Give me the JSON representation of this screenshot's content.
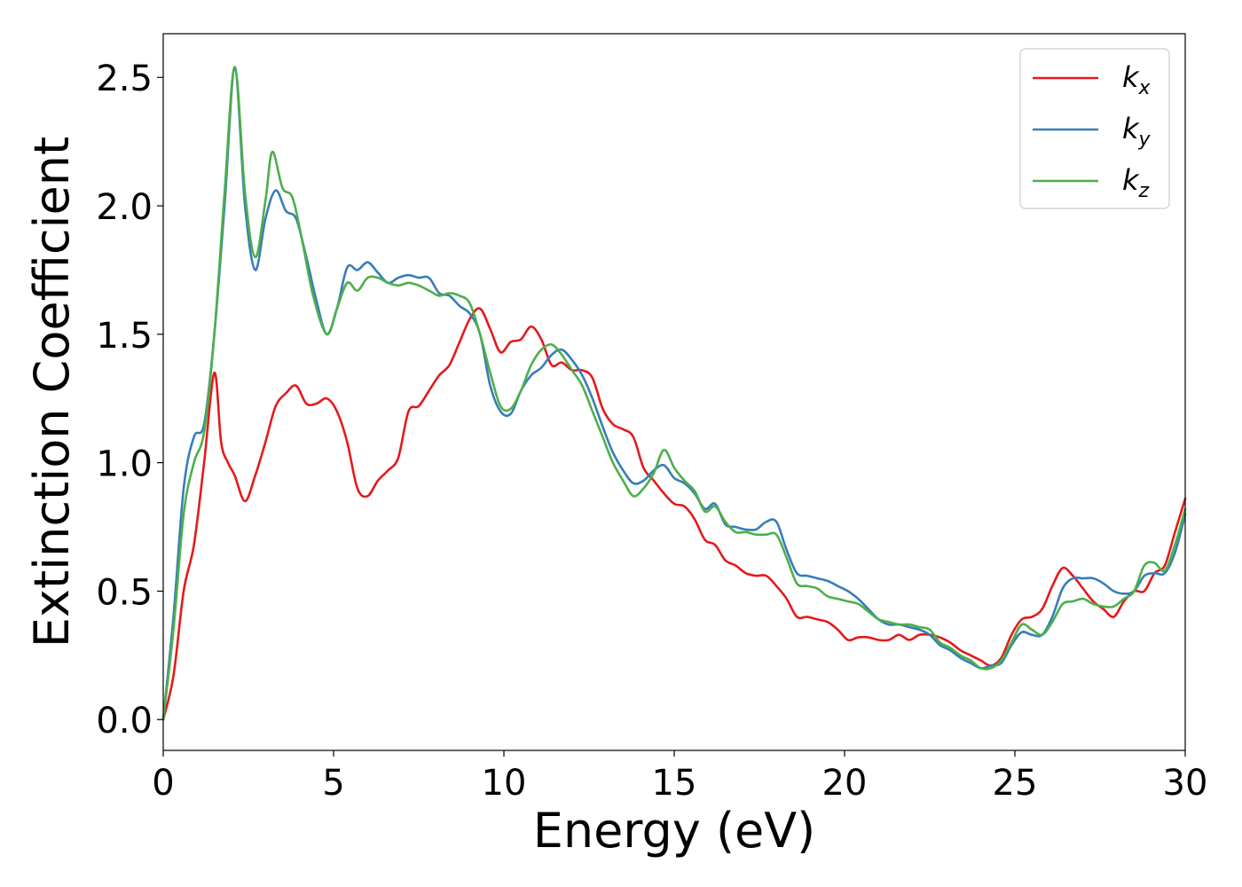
{
  "chart_data": {
    "type": "line",
    "xlabel": "Energy (eV)",
    "ylabel": "Extinction Coefficient",
    "xlim": [
      0,
      30
    ],
    "ylim": [
      -0.12,
      2.67
    ],
    "xticks": [
      0,
      5,
      10,
      15,
      20,
      25,
      30
    ],
    "xtick_labels": [
      "0",
      "5",
      "10",
      "15",
      "20",
      "25",
      "30"
    ],
    "yticks": [
      0.0,
      0.5,
      1.0,
      1.5,
      2.0,
      2.5
    ],
    "ytick_labels": [
      "0.0",
      "0.5",
      "1.0",
      "1.5",
      "2.0",
      "2.5"
    ],
    "grid": false,
    "legend_position": "top-right",
    "series": [
      {
        "name": "k_x",
        "label_main": "k",
        "label_sub": "x",
        "color": "#e41a1c",
        "x": [
          0,
          0.3,
          0.6,
          0.9,
          1.2,
          1.5,
          1.7,
          1.9,
          2.1,
          2.4,
          2.7,
          3.0,
          3.3,
          3.6,
          3.9,
          4.2,
          4.5,
          4.8,
          5.1,
          5.4,
          5.7,
          6.0,
          6.3,
          6.6,
          6.9,
          7.2,
          7.5,
          7.8,
          8.1,
          8.4,
          8.7,
          9.0,
          9.3,
          9.6,
          9.9,
          10.2,
          10.5,
          10.8,
          11.1,
          11.4,
          11.7,
          12.0,
          12.3,
          12.6,
          12.9,
          13.2,
          13.5,
          13.8,
          14.1,
          14.4,
          14.7,
          15.0,
          15.3,
          15.6,
          15.9,
          16.2,
          16.5,
          16.8,
          17.1,
          17.4,
          17.7,
          18.0,
          18.3,
          18.6,
          18.9,
          19.2,
          19.5,
          19.8,
          20.1,
          20.4,
          20.7,
          21.0,
          21.3,
          21.6,
          21.9,
          22.2,
          22.5,
          22.8,
          23.1,
          23.4,
          23.7,
          24.0,
          24.3,
          24.6,
          24.9,
          25.2,
          25.5,
          25.8,
          26.1,
          26.4,
          26.7,
          27.0,
          27.3,
          27.6,
          27.9,
          28.2,
          28.5,
          28.8,
          29.1,
          29.4,
          29.7,
          30.0
        ],
        "values": [
          0.0,
          0.17,
          0.5,
          0.68,
          1.0,
          1.35,
          1.08,
          1.0,
          0.95,
          0.85,
          0.95,
          1.08,
          1.22,
          1.27,
          1.3,
          1.23,
          1.23,
          1.25,
          1.2,
          1.08,
          0.9,
          0.87,
          0.93,
          0.97,
          1.02,
          1.2,
          1.22,
          1.28,
          1.34,
          1.38,
          1.47,
          1.56,
          1.6,
          1.52,
          1.43,
          1.47,
          1.48,
          1.53,
          1.48,
          1.38,
          1.39,
          1.36,
          1.36,
          1.33,
          1.21,
          1.15,
          1.13,
          1.1,
          0.98,
          0.93,
          0.88,
          0.84,
          0.83,
          0.78,
          0.7,
          0.68,
          0.62,
          0.6,
          0.57,
          0.56,
          0.56,
          0.52,
          0.47,
          0.4,
          0.4,
          0.39,
          0.38,
          0.35,
          0.31,
          0.32,
          0.32,
          0.31,
          0.31,
          0.33,
          0.31,
          0.33,
          0.33,
          0.32,
          0.3,
          0.27,
          0.25,
          0.23,
          0.21,
          0.24,
          0.33,
          0.39,
          0.4,
          0.43,
          0.52,
          0.59,
          0.56,
          0.51,
          0.46,
          0.43,
          0.4,
          0.46,
          0.5,
          0.5,
          0.57,
          0.6,
          0.73,
          0.86
        ]
      },
      {
        "name": "k_y",
        "label_main": "k",
        "label_sub": "y",
        "color": "#377eb8",
        "x": [
          0,
          0.3,
          0.6,
          0.9,
          1.2,
          1.5,
          1.8,
          2.1,
          2.4,
          2.7,
          3.0,
          3.3,
          3.6,
          3.9,
          4.2,
          4.5,
          4.8,
          5.1,
          5.4,
          5.7,
          6.0,
          6.3,
          6.6,
          6.9,
          7.2,
          7.5,
          7.8,
          8.1,
          8.4,
          8.7,
          9.0,
          9.3,
          9.6,
          9.9,
          10.2,
          10.5,
          10.8,
          11.1,
          11.4,
          11.7,
          12.0,
          12.3,
          12.6,
          12.9,
          13.2,
          13.5,
          13.8,
          14.1,
          14.4,
          14.7,
          15.0,
          15.3,
          15.6,
          15.9,
          16.2,
          16.5,
          16.8,
          17.1,
          17.4,
          17.7,
          18.0,
          18.3,
          18.6,
          18.9,
          19.2,
          19.5,
          19.8,
          20.1,
          20.4,
          20.7,
          21.0,
          21.3,
          21.6,
          21.9,
          22.2,
          22.5,
          22.8,
          23.1,
          23.4,
          23.7,
          24.0,
          24.3,
          24.6,
          24.9,
          25.2,
          25.5,
          25.8,
          26.1,
          26.4,
          26.7,
          27.0,
          27.3,
          27.6,
          27.9,
          28.2,
          28.5,
          28.8,
          29.1,
          29.4,
          29.7,
          30.0
        ],
        "values": [
          0.0,
          0.4,
          0.9,
          1.1,
          1.15,
          1.5,
          2.0,
          2.53,
          2.0,
          1.75,
          1.95,
          2.06,
          1.98,
          1.95,
          1.8,
          1.63,
          1.5,
          1.6,
          1.76,
          1.75,
          1.78,
          1.74,
          1.7,
          1.72,
          1.73,
          1.72,
          1.72,
          1.66,
          1.65,
          1.61,
          1.58,
          1.5,
          1.3,
          1.2,
          1.19,
          1.28,
          1.34,
          1.37,
          1.42,
          1.44,
          1.4,
          1.34,
          1.25,
          1.14,
          1.04,
          0.97,
          0.92,
          0.93,
          0.97,
          0.99,
          0.94,
          0.92,
          0.88,
          0.82,
          0.84,
          0.76,
          0.75,
          0.74,
          0.74,
          0.77,
          0.77,
          0.66,
          0.57,
          0.56,
          0.55,
          0.54,
          0.52,
          0.5,
          0.47,
          0.43,
          0.39,
          0.37,
          0.37,
          0.36,
          0.35,
          0.33,
          0.29,
          0.27,
          0.24,
          0.22,
          0.2,
          0.21,
          0.22,
          0.29,
          0.34,
          0.33,
          0.33,
          0.4,
          0.51,
          0.55,
          0.55,
          0.55,
          0.53,
          0.5,
          0.49,
          0.5,
          0.56,
          0.57,
          0.57,
          0.65,
          0.8
        ]
      },
      {
        "name": "k_z",
        "label_main": "k",
        "label_sub": "z",
        "color": "#4daf4a",
        "x": [
          0,
          0.3,
          0.6,
          0.9,
          1.2,
          1.5,
          1.8,
          2.1,
          2.4,
          2.7,
          3.0,
          3.2,
          3.5,
          3.8,
          4.1,
          4.4,
          4.8,
          5.1,
          5.4,
          5.7,
          6.0,
          6.3,
          6.6,
          6.9,
          7.2,
          7.5,
          7.8,
          8.1,
          8.4,
          8.7,
          9.0,
          9.3,
          9.6,
          9.9,
          10.2,
          10.5,
          10.8,
          11.1,
          11.4,
          11.7,
          12.0,
          12.3,
          12.6,
          12.9,
          13.2,
          13.5,
          13.8,
          14.1,
          14.4,
          14.7,
          15.0,
          15.3,
          15.6,
          15.9,
          16.2,
          16.5,
          16.8,
          17.1,
          17.4,
          17.7,
          18.0,
          18.3,
          18.6,
          18.9,
          19.2,
          19.5,
          19.8,
          20.1,
          20.4,
          20.7,
          21.0,
          21.3,
          21.6,
          21.9,
          22.2,
          22.5,
          22.8,
          23.1,
          23.4,
          23.7,
          24.0,
          24.3,
          24.6,
          24.9,
          25.2,
          25.5,
          25.8,
          26.1,
          26.4,
          26.7,
          27.0,
          27.3,
          27.6,
          27.9,
          28.2,
          28.5,
          28.8,
          29.1,
          29.4,
          29.7,
          30.0
        ],
        "values": [
          0.0,
          0.35,
          0.8,
          1.0,
          1.12,
          1.5,
          2.05,
          2.54,
          2.05,
          1.8,
          2.02,
          2.21,
          2.07,
          2.03,
          1.85,
          1.65,
          1.5,
          1.6,
          1.7,
          1.67,
          1.72,
          1.72,
          1.7,
          1.69,
          1.7,
          1.69,
          1.67,
          1.65,
          1.66,
          1.65,
          1.62,
          1.5,
          1.35,
          1.22,
          1.21,
          1.28,
          1.38,
          1.44,
          1.46,
          1.42,
          1.36,
          1.3,
          1.2,
          1.1,
          1.0,
          0.93,
          0.87,
          0.9,
          0.96,
          1.05,
          0.98,
          0.93,
          0.89,
          0.81,
          0.83,
          0.77,
          0.73,
          0.73,
          0.72,
          0.72,
          0.72,
          0.63,
          0.53,
          0.52,
          0.51,
          0.48,
          0.47,
          0.46,
          0.45,
          0.42,
          0.39,
          0.38,
          0.37,
          0.37,
          0.36,
          0.35,
          0.3,
          0.28,
          0.25,
          0.23,
          0.2,
          0.2,
          0.23,
          0.3,
          0.37,
          0.35,
          0.33,
          0.38,
          0.45,
          0.46,
          0.47,
          0.45,
          0.44,
          0.44,
          0.47,
          0.5,
          0.6,
          0.61,
          0.58,
          0.68,
          0.82
        ]
      }
    ]
  }
}
